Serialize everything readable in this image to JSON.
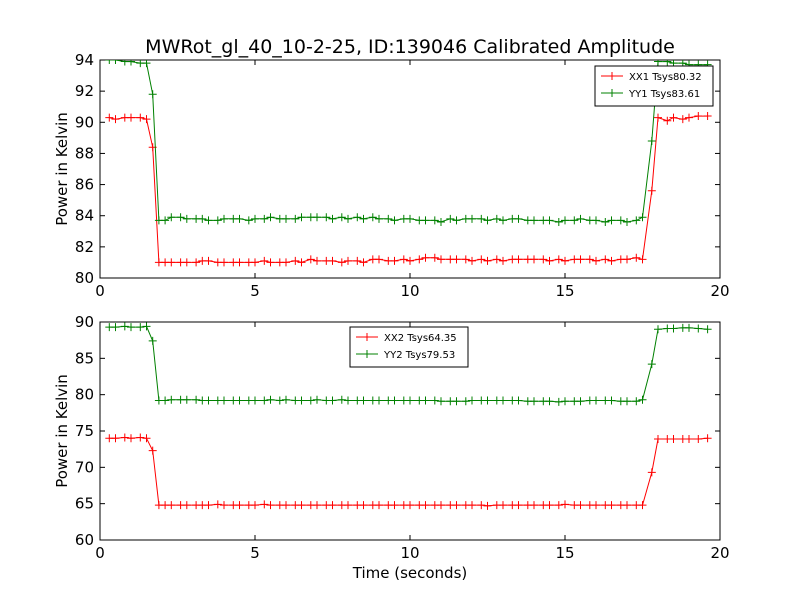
{
  "title": "MWRot_gl_40_10-2-25, ID:139046 Calibrated Amplitude",
  "xlabel": "Time (seconds)",
  "colors": {
    "series1": "#ff0000",
    "series2": "#008000",
    "axes": "#000000"
  },
  "chart_data": [
    {
      "type": "line",
      "xlim": [
        0,
        20
      ],
      "ylim": [
        80,
        94
      ],
      "xticks": [
        0,
        5,
        10,
        15,
        20
      ],
      "yticks": [
        80,
        82,
        84,
        86,
        88,
        90,
        92,
        94
      ],
      "ylabel": "Power in Kelvin",
      "legend_position": "top-right",
      "x": [
        0.3,
        0.5,
        0.8,
        1.0,
        1.3,
        1.5,
        1.7,
        1.9,
        2.1,
        2.3,
        2.6,
        2.8,
        3.1,
        3.3,
        3.5,
        3.8,
        4.0,
        4.3,
        4.5,
        4.8,
        5.0,
        5.3,
        5.5,
        5.8,
        6.0,
        6.3,
        6.5,
        6.8,
        7.0,
        7.3,
        7.5,
        7.8,
        8.0,
        8.3,
        8.5,
        8.8,
        9.0,
        9.3,
        9.5,
        9.8,
        10.0,
        10.3,
        10.5,
        10.8,
        11.0,
        11.3,
        11.5,
        11.8,
        12.0,
        12.3,
        12.5,
        12.8,
        13.0,
        13.3,
        13.5,
        13.8,
        14.0,
        14.3,
        14.5,
        14.8,
        15.0,
        15.3,
        15.5,
        15.8,
        16.0,
        16.3,
        16.5,
        16.8,
        17.0,
        17.3,
        17.5,
        17.8,
        18.0,
        18.3,
        18.5,
        18.8,
        19.0,
        19.3,
        19.6
      ],
      "series": [
        {
          "name": "XX1 Tsys80.32",
          "color": "#ff0000",
          "values": [
            90.3,
            90.2,
            90.3,
            90.3,
            90.3,
            90.2,
            88.4,
            81.0,
            81.0,
            81.0,
            81.0,
            81.0,
            81.0,
            81.1,
            81.1,
            81.0,
            81.0,
            81.0,
            81.0,
            81.0,
            81.0,
            81.1,
            81.0,
            81.0,
            81.0,
            81.1,
            81.0,
            81.2,
            81.1,
            81.1,
            81.1,
            81.0,
            81.1,
            81.1,
            81.0,
            81.2,
            81.2,
            81.1,
            81.1,
            81.2,
            81.1,
            81.2,
            81.3,
            81.3,
            81.2,
            81.2,
            81.2,
            81.2,
            81.1,
            81.2,
            81.1,
            81.2,
            81.1,
            81.2,
            81.2,
            81.2,
            81.2,
            81.2,
            81.1,
            81.2,
            81.1,
            81.2,
            81.2,
            81.2,
            81.1,
            81.2,
            81.1,
            81.2,
            81.2,
            81.3,
            81.2,
            85.6,
            90.3,
            90.1,
            90.3,
            90.2,
            90.3,
            90.4,
            90.4
          ]
        },
        {
          "name": "YY1 Tsys83.61",
          "color": "#008000",
          "values": [
            94.0,
            94.0,
            93.9,
            93.9,
            93.8,
            93.8,
            91.8,
            83.7,
            83.7,
            83.9,
            83.9,
            83.8,
            83.8,
            83.8,
            83.7,
            83.7,
            83.8,
            83.8,
            83.8,
            83.7,
            83.8,
            83.8,
            83.9,
            83.8,
            83.8,
            83.8,
            83.9,
            83.9,
            83.9,
            83.9,
            83.8,
            83.9,
            83.8,
            83.9,
            83.8,
            83.9,
            83.8,
            83.8,
            83.7,
            83.8,
            83.8,
            83.7,
            83.7,
            83.7,
            83.6,
            83.8,
            83.7,
            83.8,
            83.8,
            83.8,
            83.7,
            83.8,
            83.7,
            83.8,
            83.8,
            83.7,
            83.7,
            83.7,
            83.7,
            83.6,
            83.7,
            83.7,
            83.8,
            83.7,
            83.7,
            83.6,
            83.7,
            83.7,
            83.6,
            83.7,
            83.9,
            88.8,
            93.9,
            93.9,
            93.8,
            93.8,
            93.7,
            93.7,
            93.7
          ]
        }
      ]
    },
    {
      "type": "line",
      "xlim": [
        0,
        20
      ],
      "ylim": [
        60,
        90
      ],
      "xticks": [
        0,
        5,
        10,
        15,
        20
      ],
      "yticks": [
        60,
        65,
        70,
        75,
        80,
        85,
        90
      ],
      "ylabel": "Power in Kelvin",
      "legend_position": "top-center",
      "x": [
        0.3,
        0.5,
        0.8,
        1.0,
        1.3,
        1.5,
        1.7,
        1.9,
        2.1,
        2.3,
        2.6,
        2.8,
        3.1,
        3.3,
        3.5,
        3.8,
        4.0,
        4.3,
        4.5,
        4.8,
        5.0,
        5.3,
        5.5,
        5.8,
        6.0,
        6.3,
        6.5,
        6.8,
        7.0,
        7.3,
        7.5,
        7.8,
        8.0,
        8.3,
        8.5,
        8.8,
        9.0,
        9.3,
        9.5,
        9.8,
        10.0,
        10.3,
        10.5,
        10.8,
        11.0,
        11.3,
        11.5,
        11.8,
        12.0,
        12.3,
        12.5,
        12.8,
        13.0,
        13.3,
        13.5,
        13.8,
        14.0,
        14.3,
        14.5,
        14.8,
        15.0,
        15.3,
        15.5,
        15.8,
        16.0,
        16.3,
        16.5,
        16.8,
        17.0,
        17.3,
        17.5,
        17.8,
        18.0,
        18.3,
        18.5,
        18.8,
        19.0,
        19.3,
        19.6
      ],
      "series": [
        {
          "name": "XX2 Tsys64.35",
          "color": "#ff0000",
          "values": [
            74.0,
            74.0,
            74.1,
            74.0,
            74.1,
            74.0,
            72.3,
            64.8,
            64.8,
            64.8,
            64.8,
            64.8,
            64.8,
            64.8,
            64.8,
            64.9,
            64.8,
            64.8,
            64.8,
            64.8,
            64.8,
            64.9,
            64.8,
            64.8,
            64.8,
            64.8,
            64.8,
            64.8,
            64.8,
            64.8,
            64.8,
            64.8,
            64.8,
            64.8,
            64.8,
            64.8,
            64.8,
            64.8,
            64.8,
            64.8,
            64.8,
            64.8,
            64.8,
            64.8,
            64.8,
            64.8,
            64.8,
            64.8,
            64.8,
            64.8,
            64.7,
            64.8,
            64.8,
            64.8,
            64.8,
            64.8,
            64.8,
            64.8,
            64.8,
            64.8,
            64.9,
            64.8,
            64.8,
            64.8,
            64.8,
            64.8,
            64.8,
            64.8,
            64.8,
            64.8,
            64.8,
            69.3,
            73.9,
            73.9,
            73.9,
            73.9,
            73.9,
            73.9,
            74.0
          ]
        },
        {
          "name": "YY2 Tsys79.53",
          "color": "#008000",
          "values": [
            89.3,
            89.3,
            89.4,
            89.3,
            89.3,
            89.4,
            87.4,
            79.2,
            79.2,
            79.3,
            79.3,
            79.3,
            79.3,
            79.2,
            79.2,
            79.2,
            79.2,
            79.2,
            79.2,
            79.2,
            79.2,
            79.2,
            79.3,
            79.2,
            79.3,
            79.2,
            79.2,
            79.2,
            79.3,
            79.2,
            79.2,
            79.3,
            79.2,
            79.2,
            79.2,
            79.2,
            79.2,
            79.2,
            79.2,
            79.2,
            79.2,
            79.2,
            79.2,
            79.2,
            79.1,
            79.1,
            79.1,
            79.1,
            79.2,
            79.2,
            79.2,
            79.2,
            79.2,
            79.2,
            79.2,
            79.1,
            79.1,
            79.1,
            79.1,
            79.0,
            79.1,
            79.1,
            79.1,
            79.2,
            79.2,
            79.2,
            79.2,
            79.1,
            79.1,
            79.1,
            79.3,
            84.2,
            89.0,
            89.1,
            89.1,
            89.2,
            89.2,
            89.1,
            89.0
          ]
        }
      ]
    }
  ]
}
